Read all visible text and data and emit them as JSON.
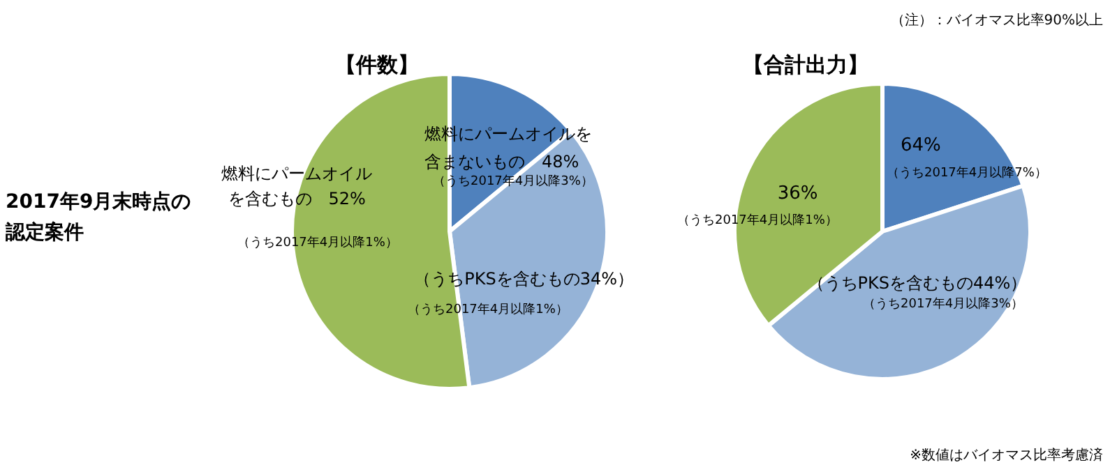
{
  "chart_data": [
    {
      "type": "pie",
      "title": "【件数】",
      "categories": [
        null,
        null,
        null
      ],
      "values": [
        14,
        34,
        52
      ],
      "colors": [
        "#4f81bd",
        "#95b3d7",
        "#9bbb59"
      ],
      "value_labels": [
        null,
        "（うちPKSを含むもの34%）",
        "燃料にパームオイルを含むもの　52%"
      ],
      "annotations": [
        "2017年9月末時点の認定案件",
        "燃料にパームオイルを含まないもの　48%",
        "（うち2017年4月以降3%）",
        "（うち2017年4月以降1%）",
        "（うち2017年4月以降1%）"
      ]
    },
    {
      "type": "pie",
      "title": "【合計出力】",
      "categories": [
        null,
        null,
        null
      ],
      "values": [
        20,
        44,
        36
      ],
      "colors": [
        "#4f81bd",
        "#95b3d7",
        "#9bbb59"
      ],
      "value_labels": [
        null,
        "（うちPKSを含むもの44%）",
        "36%"
      ],
      "annotations": [
        "（注）：バイオマス比率90%以上",
        "64%",
        "（うち2017年4月以降7%）",
        "（うち2017年4月以降3%）",
        "（うち2017年4月以降1%）",
        "※数値はバイオマス比率考慮済"
      ]
    }
  ]
}
